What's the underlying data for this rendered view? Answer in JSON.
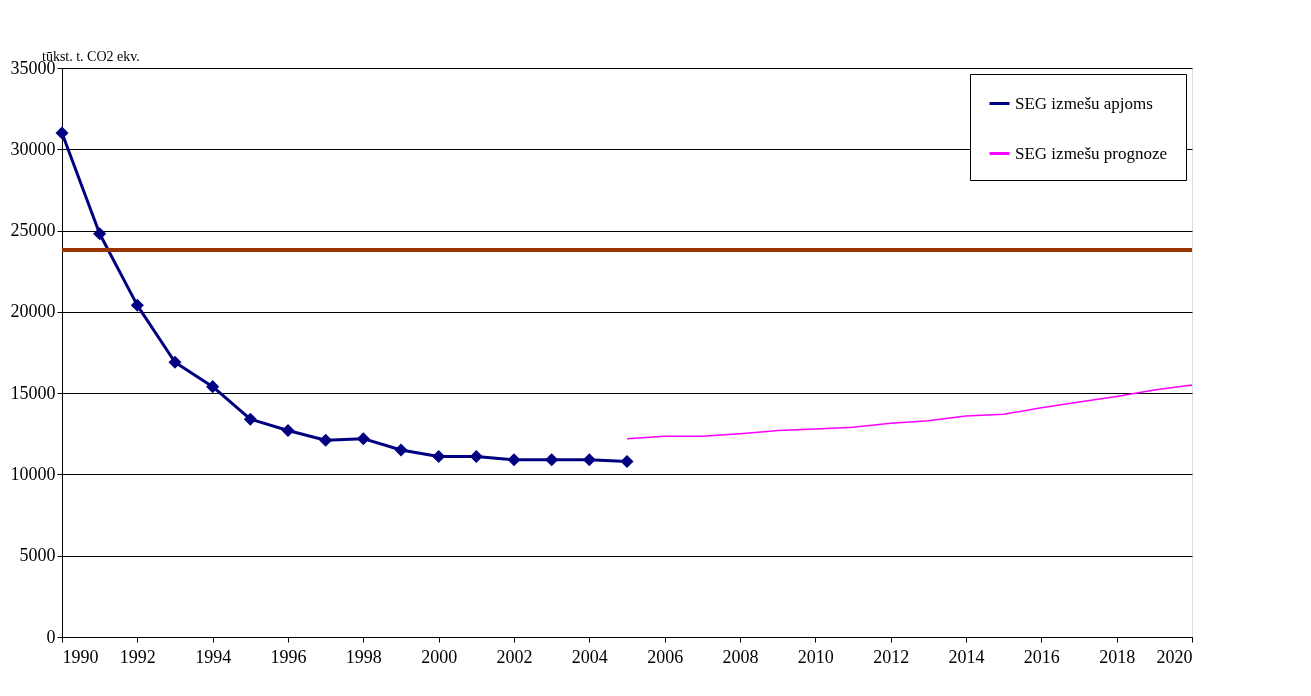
{
  "chart_data": {
    "type": "line",
    "ylabel": "tūkst. t. CO2 ekv.",
    "xlim": [
      1990,
      2020
    ],
    "xticks": [
      1990,
      1992,
      1994,
      1996,
      1998,
      2000,
      2002,
      2004,
      2006,
      2008,
      2010,
      2012,
      2014,
      2016,
      2018,
      2020
    ],
    "ylim": [
      0,
      35000
    ],
    "yticks": [
      0,
      5000,
      10000,
      15000,
      20000,
      25000,
      30000,
      35000
    ],
    "grid": "y",
    "legend": "top right",
    "ref_lines": [
      {
        "axis": "y",
        "value": 23800,
        "color": "#993300"
      }
    ],
    "series": [
      {
        "name": "SEG izmešu apjoms",
        "color": "#000080",
        "marker": "diamond",
        "x": [
          1990,
          1991,
          1992,
          1993,
          1994,
          1995,
          1996,
          1997,
          1998,
          1999,
          2000,
          2001,
          2002,
          2003,
          2004,
          2005
        ],
        "values": [
          31000,
          24800,
          20400,
          16900,
          15400,
          13400,
          12700,
          12100,
          12200,
          11500,
          11100,
          11100,
          10900,
          10900,
          10900,
          10800
        ]
      },
      {
        "name": "SEG izmešu prognoze",
        "color": "#ff00ff",
        "marker": "none",
        "x": [
          2005,
          2006,
          2007,
          2008,
          2009,
          2010,
          2011,
          2012,
          2013,
          2014,
          2015,
          2016,
          2017,
          2018,
          2019,
          2020
        ],
        "values": [
          12200,
          12350,
          12350,
          12500,
          12700,
          12800,
          12900,
          13150,
          13300,
          13600,
          13700,
          14100,
          14450,
          14800,
          15200,
          15500
        ]
      }
    ]
  }
}
